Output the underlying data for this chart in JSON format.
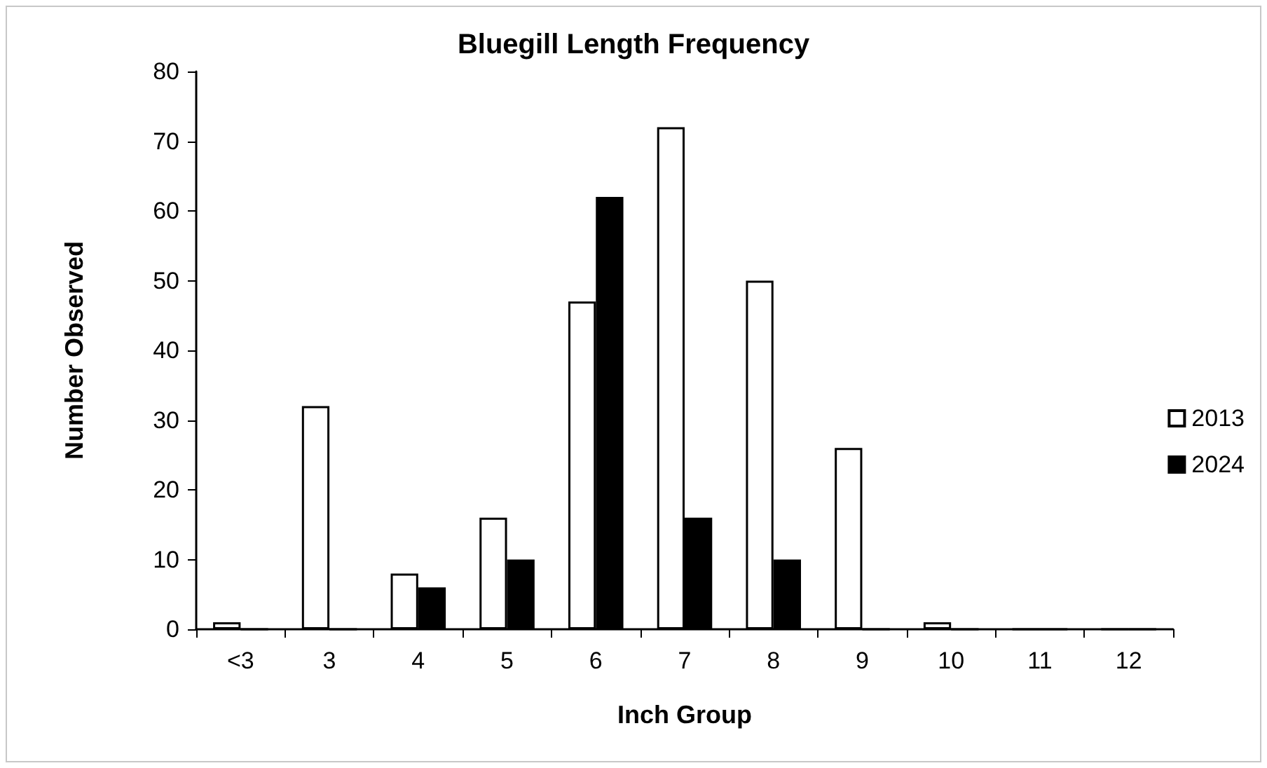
{
  "chart_data": {
    "type": "bar",
    "title": "Bluegill Length Frequency",
    "xlabel": "Inch Group",
    "ylabel": "Number Observed",
    "categories": [
      "<3",
      "3",
      "4",
      "5",
      "6",
      "7",
      "8",
      "9",
      "10",
      "11",
      "12"
    ],
    "series": [
      {
        "name": "2013",
        "color": "#ffffff",
        "values": [
          1,
          32,
          8,
          16,
          47,
          72,
          50,
          26,
          1,
          0,
          0
        ]
      },
      {
        "name": "2024",
        "color": "#000000",
        "values": [
          0,
          0,
          6,
          10,
          62,
          16,
          10,
          0,
          0,
          0,
          0
        ]
      }
    ],
    "ylim": [
      0,
      80
    ],
    "yticks": [
      0,
      10,
      20,
      30,
      40,
      50,
      60,
      70,
      80
    ],
    "grid": false,
    "legend": "right"
  }
}
